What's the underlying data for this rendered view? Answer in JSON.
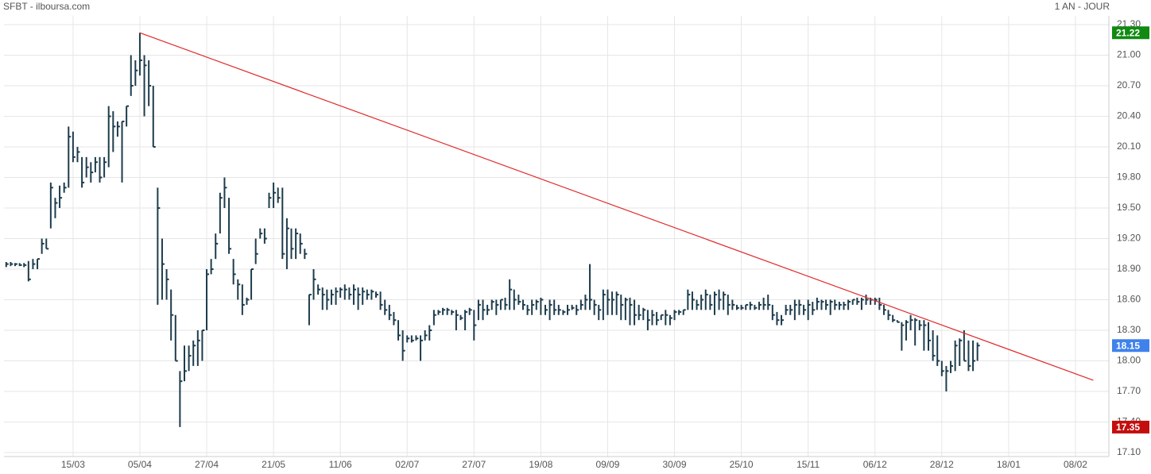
{
  "chart_data": {
    "type": "ohlc",
    "title": "SFBT - ilboursa.com",
    "subtitle": "1 AN - JOUR",
    "color": "#1d3c4c",
    "x": [
      0,
      1,
      2,
      3,
      4,
      5,
      6,
      7,
      8,
      9,
      10,
      11,
      12,
      13,
      14,
      15,
      16,
      17,
      18,
      19,
      20,
      21,
      22,
      23,
      24,
      25,
      26,
      27,
      28,
      29,
      30,
      31,
      32,
      33,
      34,
      35,
      36,
      37,
      38,
      39,
      40,
      41,
      42,
      43,
      44,
      45,
      46,
      47,
      48,
      49,
      50,
      51,
      52,
      53,
      54,
      55,
      56,
      57,
      58,
      59,
      60,
      61,
      62,
      63,
      64,
      65,
      66,
      67,
      68,
      69,
      70,
      71,
      72,
      73,
      74,
      75,
      76,
      77,
      78,
      79,
      80,
      81,
      82,
      83,
      84,
      85,
      86,
      87,
      88,
      89,
      90,
      91,
      92,
      93,
      94,
      95,
      96,
      97,
      98,
      99,
      100,
      101,
      102,
      103,
      104,
      105,
      106,
      107,
      108,
      109,
      110,
      111,
      112,
      113,
      114,
      115,
      116,
      117,
      118,
      119,
      120,
      121,
      122,
      123,
      124,
      125,
      126,
      127,
      128,
      129,
      130,
      131,
      132,
      133,
      134,
      135,
      136,
      137,
      138,
      139,
      140,
      141,
      142,
      143,
      144,
      145,
      146,
      147,
      148,
      149,
      150,
      151,
      152,
      153,
      154,
      155,
      156,
      157,
      158,
      159,
      160,
      161,
      162,
      163,
      164,
      165,
      166,
      167,
      168,
      169,
      170,
      171,
      172,
      173,
      174,
      175,
      176,
      177,
      178,
      179,
      180,
      181,
      182,
      183,
      184,
      185,
      186,
      187,
      188,
      189,
      190,
      191,
      192,
      193,
      194,
      195,
      196,
      197,
      198,
      199,
      200,
      201,
      202,
      203,
      204,
      205,
      206,
      207,
      208,
      209,
      210,
      211,
      212,
      213,
      214,
      215,
      216,
      217,
      218
    ],
    "high": [
      18.97,
      18.97,
      18.96,
      18.96,
      18.96,
      18.98,
      19.0,
      19.0,
      19.2,
      19.2,
      19.75,
      19.6,
      19.72,
      19.75,
      20.3,
      20.25,
      20.1,
      20.0,
      20.0,
      19.95,
      20.0,
      20.0,
      20.0,
      20.5,
      20.45,
      20.35,
      20.35,
      20.5,
      21.0,
      20.95,
      21.22,
      21.0,
      20.95,
      20.7,
      19.7,
      19.2,
      18.9,
      18.7,
      18.45,
      17.9,
      18.15,
      18.15,
      18.2,
      18.3,
      18.3,
      18.9,
      19.0,
      19.25,
      19.65,
      19.8,
      19.6,
      19.0,
      18.8,
      18.75,
      18.62,
      18.9,
      19.2,
      19.3,
      19.3,
      19.65,
      19.75,
      19.7,
      19.7,
      19.4,
      19.3,
      19.3,
      19.25,
      19.1,
      18.65,
      18.9,
      18.75,
      18.72,
      18.7,
      18.7,
      18.72,
      18.72,
      18.75,
      18.72,
      18.75,
      18.72,
      18.72,
      18.7,
      18.7,
      18.68,
      18.68,
      18.6,
      18.55,
      18.48,
      18.4,
      18.3,
      18.25,
      18.25,
      18.25,
      18.25,
      18.3,
      18.35,
      18.5,
      18.5,
      18.52,
      18.52,
      18.5,
      18.5,
      18.45,
      18.5,
      18.52,
      18.5,
      18.6,
      18.6,
      18.55,
      18.6,
      18.6,
      18.6,
      18.62,
      18.8,
      18.7,
      18.65,
      18.6,
      18.55,
      18.6,
      18.6,
      18.62,
      18.55,
      18.6,
      18.6,
      18.55,
      18.5,
      18.55,
      18.55,
      18.55,
      18.6,
      18.65,
      18.95,
      18.6,
      18.55,
      18.7,
      18.7,
      18.68,
      18.68,
      18.65,
      18.62,
      18.62,
      18.6,
      18.55,
      18.52,
      18.5,
      18.5,
      18.48,
      18.45,
      18.5,
      18.45,
      18.5,
      18.5,
      18.5,
      18.7,
      18.68,
      18.6,
      18.65,
      18.7,
      18.65,
      18.68,
      18.7,
      18.68,
      18.65,
      18.6,
      18.55,
      18.55,
      18.55,
      18.58,
      18.55,
      18.58,
      18.62,
      18.65,
      18.55,
      18.48,
      18.45,
      18.55,
      18.55,
      18.6,
      18.6,
      18.55,
      18.6,
      18.58,
      18.62,
      18.6,
      18.6,
      18.6,
      18.6,
      18.58,
      18.58,
      18.6,
      18.6,
      18.62,
      18.62,
      18.65,
      18.62,
      18.62,
      18.62,
      18.55,
      18.5,
      18.45,
      18.4,
      18.38,
      18.4,
      18.45,
      18.42,
      18.4,
      18.4,
      18.38,
      18.3,
      18.25,
      18.0,
      17.95,
      18.0,
      18.2,
      18.22,
      18.3,
      18.2,
      18.2,
      18.18
    ],
    "low": [
      18.92,
      18.93,
      18.93,
      18.93,
      18.92,
      18.78,
      18.9,
      18.9,
      19.05,
      19.1,
      19.3,
      19.4,
      19.5,
      19.65,
      19.7,
      19.95,
      19.95,
      19.7,
      19.8,
      19.75,
      19.85,
      19.75,
      19.8,
      19.9,
      20.05,
      20.2,
      19.75,
      20.3,
      20.6,
      20.7,
      20.8,
      20.4,
      20.5,
      20.1,
      18.55,
      18.6,
      18.6,
      18.2,
      18.0,
      17.35,
      17.8,
      17.9,
      17.95,
      17.95,
      18.0,
      18.3,
      18.85,
      19.0,
      19.25,
      19.5,
      19.05,
      18.75,
      18.6,
      18.45,
      18.55,
      18.6,
      18.95,
      19.2,
      19.15,
      19.5,
      19.5,
      19.55,
      19.0,
      18.9,
      19.0,
      19.0,
      19.05,
      19.0,
      18.35,
      18.6,
      18.65,
      18.5,
      18.5,
      18.55,
      18.55,
      18.62,
      18.6,
      18.6,
      18.55,
      18.5,
      18.55,
      18.6,
      18.6,
      18.62,
      18.5,
      18.45,
      18.4,
      18.35,
      18.2,
      18.0,
      18.18,
      18.18,
      18.2,
      18.0,
      18.2,
      18.2,
      18.35,
      18.45,
      18.45,
      18.45,
      18.45,
      18.3,
      18.4,
      18.3,
      18.45,
      18.2,
      18.4,
      18.4,
      18.45,
      18.5,
      18.45,
      18.5,
      18.5,
      18.5,
      18.5,
      18.55,
      18.5,
      18.45,
      18.45,
      18.5,
      18.45,
      18.45,
      18.4,
      18.45,
      18.45,
      18.45,
      18.45,
      18.5,
      18.45,
      18.5,
      18.5,
      18.5,
      18.45,
      18.4,
      18.4,
      18.45,
      18.45,
      18.45,
      18.4,
      18.4,
      18.35,
      18.35,
      18.4,
      18.4,
      18.3,
      18.35,
      18.35,
      18.4,
      18.35,
      18.35,
      18.4,
      18.45,
      18.45,
      18.5,
      18.5,
      18.5,
      18.5,
      18.5,
      18.5,
      18.45,
      18.5,
      18.5,
      18.45,
      18.5,
      18.5,
      18.5,
      18.5,
      18.5,
      18.5,
      18.5,
      18.5,
      18.5,
      18.4,
      18.35,
      18.35,
      18.45,
      18.45,
      18.4,
      18.45,
      18.45,
      18.4,
      18.45,
      18.5,
      18.5,
      18.5,
      18.45,
      18.5,
      18.5,
      18.5,
      18.5,
      18.55,
      18.55,
      18.5,
      18.55,
      18.55,
      18.55,
      18.5,
      18.45,
      18.4,
      18.38,
      18.38,
      18.1,
      18.2,
      18.3,
      18.15,
      18.3,
      18.1,
      18.1,
      18.0,
      17.95,
      17.85,
      17.7,
      17.88,
      17.9,
      17.95,
      18.0,
      17.9,
      17.9,
      18.0
    ],
    "close": [
      18.95,
      18.95,
      18.95,
      18.94,
      18.94,
      18.8,
      18.95,
      19.0,
      19.15,
      19.1,
      19.7,
      19.55,
      19.6,
      19.7,
      20.2,
      20.0,
      20.05,
      19.75,
      19.9,
      19.85,
      19.95,
      19.8,
      19.95,
      20.4,
      20.3,
      20.3,
      20.35,
      20.5,
      20.7,
      20.85,
      20.95,
      20.9,
      20.7,
      20.1,
      19.5,
      18.95,
      18.8,
      18.45,
      18.0,
      17.8,
      17.9,
      18.05,
      18.15,
      18.2,
      18.3,
      18.85,
      18.9,
      19.15,
      19.6,
      19.7,
      19.1,
      18.85,
      18.75,
      18.55,
      18.6,
      18.9,
      19.05,
      19.25,
      19.2,
      19.6,
      19.65,
      19.6,
      19.05,
      19.3,
      19.1,
      19.25,
      19.15,
      19.05,
      18.65,
      18.8,
      18.7,
      18.65,
      18.6,
      18.65,
      18.68,
      18.7,
      18.7,
      18.65,
      18.7,
      18.65,
      18.68,
      18.65,
      18.68,
      18.65,
      18.55,
      18.5,
      18.45,
      18.4,
      18.25,
      18.1,
      18.22,
      18.2,
      18.22,
      18.2,
      18.25,
      18.3,
      18.45,
      18.48,
      18.5,
      18.5,
      18.48,
      18.45,
      18.42,
      18.48,
      18.5,
      18.35,
      18.55,
      18.5,
      18.5,
      18.58,
      18.55,
      18.6,
      18.55,
      18.7,
      18.6,
      18.58,
      18.55,
      18.5,
      18.55,
      18.58,
      18.6,
      18.5,
      18.55,
      18.5,
      18.5,
      18.48,
      18.5,
      18.52,
      18.5,
      18.55,
      18.6,
      18.6,
      18.55,
      18.5,
      18.65,
      18.6,
      18.6,
      18.65,
      18.55,
      18.6,
      18.55,
      18.45,
      18.45,
      18.5,
      18.4,
      18.45,
      18.4,
      18.45,
      18.45,
      18.42,
      18.48,
      18.48,
      18.5,
      18.65,
      18.6,
      18.55,
      18.6,
      18.65,
      18.55,
      18.65,
      18.6,
      18.65,
      18.55,
      18.55,
      18.52,
      18.52,
      18.55,
      18.55,
      18.52,
      18.55,
      18.55,
      18.55,
      18.45,
      18.4,
      18.4,
      18.5,
      18.5,
      18.55,
      18.55,
      18.5,
      18.55,
      18.5,
      18.58,
      18.58,
      18.55,
      18.58,
      18.55,
      18.55,
      18.55,
      18.58,
      18.6,
      18.58,
      18.6,
      18.6,
      18.6,
      18.6,
      18.55,
      18.5,
      18.45,
      18.4,
      18.38,
      18.35,
      18.38,
      18.4,
      18.4,
      18.35,
      18.35,
      18.2,
      18.05,
      18.0,
      17.9,
      17.9,
      17.95,
      18.15,
      18.2,
      18.0,
      17.95,
      18.0,
      18.15
    ],
    "trendline": {
      "x": [
        30,
        244
      ],
      "y": [
        21.22,
        17.81
      ],
      "color": "#e02a2a"
    },
    "price_labels": [
      {
        "value": 21.22,
        "color": "#118a11"
      },
      {
        "value": 18.15,
        "color": "#3f82ec"
      },
      {
        "value": 17.35,
        "color": "#c40d0d"
      }
    ],
    "xlim": [
      -0.5,
      247.5
    ],
    "xticks": [
      {
        "value": 15,
        "label": "15/03"
      },
      {
        "value": 30,
        "label": "05/04"
      },
      {
        "value": 45,
        "label": "27/04"
      },
      {
        "value": 60,
        "label": "21/05"
      },
      {
        "value": 75,
        "label": "11/06"
      },
      {
        "value": 90,
        "label": "02/07"
      },
      {
        "value": 105,
        "label": "27/07"
      },
      {
        "value": 120,
        "label": "19/08"
      },
      {
        "value": 135,
        "label": "09/09"
      },
      {
        "value": 150,
        "label": "30/09"
      },
      {
        "value": 165,
        "label": "25/10"
      },
      {
        "value": 180,
        "label": "15/11"
      },
      {
        "value": 195,
        "label": "06/12"
      },
      {
        "value": 210,
        "label": "28/12"
      },
      {
        "value": 225,
        "label": "18/01"
      },
      {
        "value": 240,
        "label": "08/02"
      }
    ],
    "ylim": [
      17.1,
      21.3
    ],
    "yticks": [
      {
        "value": 17.1,
        "label": "17.10"
      },
      {
        "value": 17.4,
        "label": "17.40"
      },
      {
        "value": 17.7,
        "label": "17.70"
      },
      {
        "value": 18.0,
        "label": "18.00"
      },
      {
        "value": 18.3,
        "label": "18.30"
      },
      {
        "value": 18.6,
        "label": "18.60"
      },
      {
        "value": 18.9,
        "label": "18.90"
      },
      {
        "value": 19.2,
        "label": "19.20"
      },
      {
        "value": 19.5,
        "label": "19.50"
      },
      {
        "value": 19.8,
        "label": "19.80"
      },
      {
        "value": 20.1,
        "label": "20.10"
      },
      {
        "value": 20.4,
        "label": "20.40"
      },
      {
        "value": 20.7,
        "label": "20.70"
      },
      {
        "value": 21.0,
        "label": "21.00"
      },
      {
        "value": 21.3,
        "label": "21.30"
      }
    ],
    "grid": true
  }
}
